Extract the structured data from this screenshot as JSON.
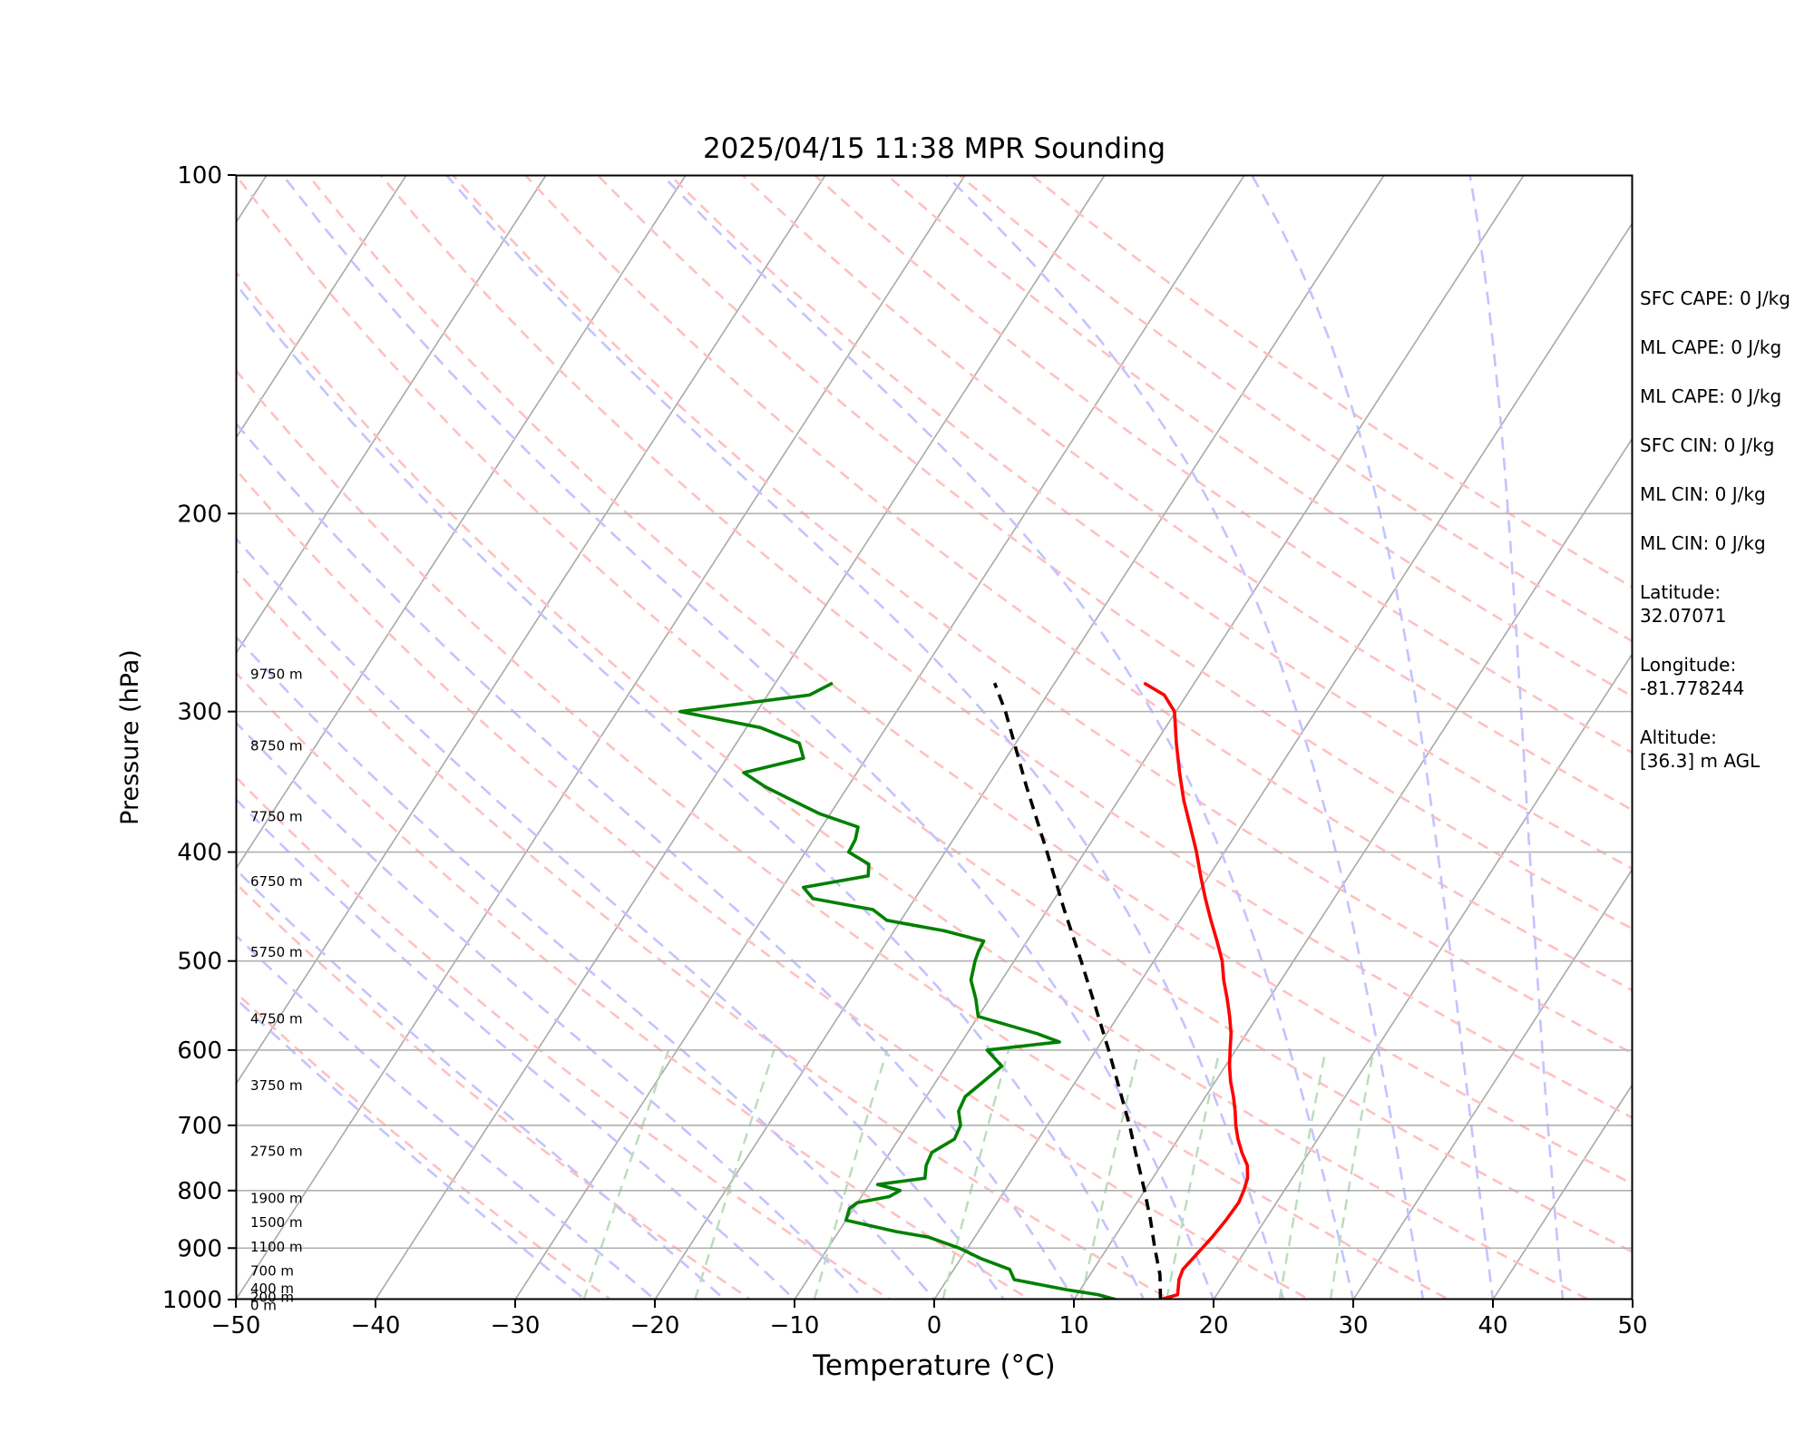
{
  "chart_data": {
    "type": "line",
    "title": "2025/04/15 11:38 MPR Sounding",
    "xlabel": "Temperature (°C)",
    "ylabel": "Pressure (hPa)",
    "xlim": [
      -50,
      50
    ],
    "ylim": [
      1000,
      100
    ],
    "y_scale": "log",
    "x_ticks": [
      -50,
      -40,
      -30,
      -20,
      -10,
      0,
      10,
      20,
      30,
      40,
      50
    ],
    "x_tick_labels": [
      "−50",
      "−40",
      "−30",
      "−20",
      "−10",
      "0",
      "10",
      "20",
      "30",
      "40",
      "50"
    ],
    "y_ticks": [
      100,
      200,
      300,
      400,
      500,
      600,
      700,
      800,
      900,
      1000
    ],
    "y_tick_labels": [
      "100",
      "200",
      "300",
      "400",
      "500",
      "600",
      "700",
      "800",
      "900",
      "1000"
    ],
    "grid": "horizontal at y ticks",
    "series": [
      {
        "role": "temperature",
        "color": "#ff0000",
        "pressure": [
          1000,
          990,
          980,
          960,
          940,
          920,
          900,
          880,
          850,
          820,
          800,
          780,
          760,
          740,
          720,
          700,
          680,
          660,
          640,
          620,
          600,
          580,
          560,
          540,
          520,
          500,
          480,
          460,
          440,
          420,
          400,
          380,
          360,
          340,
          320,
          300,
          290,
          283
        ],
        "values": [
          16.2,
          17.2,
          17.0,
          16.6,
          16.4,
          16.6,
          16.8,
          17.0,
          17.2,
          17.3,
          17.1,
          16.8,
          16.2,
          15.2,
          14.3,
          13.5,
          12.8,
          12.0,
          11.1,
          10.3,
          9.6,
          8.9,
          8.0,
          7.0,
          5.9,
          4.9,
          3.6,
          2.2,
          0.8,
          -0.6,
          -2.0,
          -3.6,
          -5.3,
          -6.9,
          -8.5,
          -10.1,
          -11.6,
          -13.6
        ]
      },
      {
        "role": "dewpoint",
        "color": "#008000",
        "pressure": [
          1000,
          990,
          980,
          960,
          940,
          920,
          900,
          880,
          870,
          850,
          830,
          820,
          810,
          800,
          790,
          780,
          760,
          740,
          720,
          700,
          680,
          660,
          640,
          620,
          600,
          590,
          580,
          560,
          540,
          520,
          500,
          490,
          480,
          470,
          460,
          450,
          440,
          430,
          420,
          410,
          400,
          390,
          380,
          370,
          360,
          350,
          340,
          330,
          320,
          310,
          300,
          290,
          283
        ],
        "values": [
          13.0,
          11.5,
          9.0,
          4.8,
          4.0,
          1.5,
          -0.6,
          -3.3,
          -5.9,
          -10.0,
          -10.3,
          -10.0,
          -8.0,
          -7.5,
          -9.4,
          -6.3,
          -6.8,
          -7.0,
          -6.0,
          -6.2,
          -7.0,
          -7.2,
          -6.6,
          -6.0,
          -7.8,
          -3.0,
          -5.0,
          -10.0,
          -11.0,
          -12.2,
          -12.8,
          -13.0,
          -13.1,
          -16.4,
          -21.0,
          -22.5,
          -27.3,
          -28.5,
          -24.4,
          -24.9,
          -26.9,
          -27.0,
          -27.4,
          -30.7,
          -33.3,
          -35.9,
          -38.1,
          -34.5,
          -35.5,
          -39.0,
          -45.5,
          -37.0,
          -35.9
        ]
      },
      {
        "role": "parcel",
        "color": "#000000",
        "style": "dashed",
        "pressure": [
          1000,
          950,
          900,
          850,
          800,
          750,
          700,
          650,
          600,
          550,
          500,
          450,
          400,
          350,
          300,
          283
        ],
        "values": [
          16.2,
          15.0,
          13.4,
          11.8,
          10.0,
          8.0,
          5.9,
          3.5,
          0.9,
          -2.0,
          -5.2,
          -8.8,
          -12.7,
          -17.2,
          -22.2,
          -24.3
        ]
      }
    ],
    "height_labels": [
      "9750 m",
      "8750 m",
      "7750 m",
      "6750 m",
      "5750 m",
      "4750 m",
      "3750 m",
      "2750 m",
      "1900 m",
      "1500 m",
      "1100 m",
      "700 m",
      "400 m",
      "200 m",
      "0 m"
    ],
    "height_label_pressures": [
      278,
      322,
      372,
      425,
      491,
      563,
      645,
      738,
      813,
      854,
      898,
      943,
      978,
      995,
      1012
    ],
    "background_lines": {
      "isotherms_color": "#a9a9a9",
      "dry_adiabats_color": "#ffc0c0",
      "moist_adiabats_color": "#c3c3ff",
      "mixing_ratio_color": "#bbdcbb"
    }
  },
  "side_panel": {
    "sfc_cape": "SFC CAPE: 0 J/kg",
    "ml_cape_1": "ML CAPE: 0 J/kg",
    "ml_cape_2": "ML CAPE: 0 J/kg",
    "sfc_cin": "SFC CIN: 0 J/kg",
    "ml_cin_1": "ML CIN: 0 J/kg",
    "ml_cin_2": "ML CIN: 0 J/kg",
    "latitude_label": "Latitude:",
    "latitude_value": "32.07071",
    "longitude_label": "Longitude:",
    "longitude_value": "-81.778244",
    "altitude_label": "Altitude:",
    "altitude_value": "[36.3] m AGL"
  }
}
